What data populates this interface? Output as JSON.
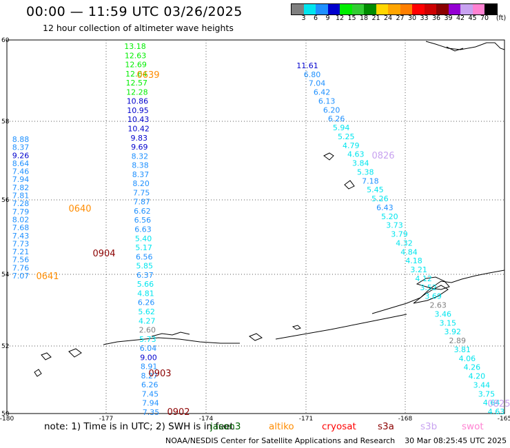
{
  "header": {
    "title": "00:00 — 11:59 UTC 03/26/2025",
    "subtitle": "12 hour collection of altimeter wave heights"
  },
  "legend": {
    "unit": "(ft)",
    "colors": [
      "#7f7f7f",
      "#00e5ee",
      "#1e90ff",
      "#0000cd",
      "#00ee00",
      "#32cd32",
      "#008b00",
      "#ffd700",
      "#ffa500",
      "#ff7f00",
      "#ff0000",
      "#cd0000",
      "#8b0000",
      "#9400d3",
      "#c8a2f0",
      "#ff82d2",
      "#000000"
    ],
    "labels": [
      "3",
      "6",
      "9",
      "12",
      "15",
      "18",
      "21",
      "24",
      "27",
      "30",
      "33",
      "36",
      "39",
      "42",
      "45",
      "70"
    ]
  },
  "axes": {
    "lat_labels": [
      "60",
      "58",
      "56",
      "54",
      "52",
      "50"
    ],
    "lon_labels": [
      "-180",
      "-177",
      "-174",
      "-171",
      "-168",
      "-165"
    ]
  },
  "passes": [
    {
      "id": "0639",
      "color": "#ff8c00"
    },
    {
      "id": "0640",
      "color": "#ff8c00"
    },
    {
      "id": "0641",
      "color": "#ff8c00"
    },
    {
      "id": "0904",
      "color": "#8b0000"
    },
    {
      "id": "0903",
      "color": "#8b0000"
    },
    {
      "id": "0902",
      "color": "#8b0000"
    },
    {
      "id": "0826",
      "color": "#c8a2f0"
    },
    {
      "id": "0825",
      "color": "#c8a2f0"
    }
  ],
  "tracks": {
    "track_a": [
      "13.18",
      "12.63",
      "12.69",
      "12.64",
      "12.57",
      "12.28",
      "10.86",
      "10.95",
      "10.43",
      "10.42",
      "9.83",
      "9.69",
      "8.32",
      "8.38",
      "8.37",
      "8.20",
      "7.75",
      "7.87",
      "6.62",
      "6.56",
      "6.63",
      "5.40",
      "5.17",
      "6.56",
      "5.85",
      "6.37",
      "5.66",
      "4.81",
      "6.26",
      "5.62",
      "4.27",
      "2.60",
      "5.73",
      "6.04",
      "9.00",
      "8.91",
      "8.27",
      "6.26",
      "7.45",
      "7.94",
      "7.35"
    ],
    "track_b": [
      "8.88",
      "8.37",
      "9.26",
      "8.64",
      "7.46",
      "7.94",
      "7.82",
      "7.81",
      "7.28",
      "7.79",
      "8.02",
      "7.68",
      "7.43",
      "7.73",
      "7.21",
      "7.56",
      "7.76",
      "7.07"
    ],
    "track_c": [
      "11.61",
      "6.80",
      "7.04",
      "6.42",
      "6.13",
      "6.20",
      "6.26",
      "5.94",
      "5.25",
      "4.79",
      "4.63",
      "3.84",
      "5.38",
      "7.18",
      "5.45",
      "5.26",
      "6.43",
      "5.20",
      "3.73",
      "3.79",
      "4.32",
      "4.84",
      "4.18",
      "3.21",
      "4.12",
      "3.52",
      "3.69",
      "2.63",
      "3.46",
      "3.15",
      "3.92",
      "2.89",
      "3.81",
      "4.06",
      "4.26",
      "4.20",
      "3.44",
      "3.75",
      "4.64",
      "4.63"
    ]
  },
  "footer": {
    "note": "note: 1) Time is in UTC; 2) SWH is in feet",
    "satellites": [
      {
        "name": "jason3",
        "color": "#006400"
      },
      {
        "name": "altiko",
        "color": "#ff8c00"
      },
      {
        "name": "cryosat",
        "color": "#ff0000"
      },
      {
        "name": "s3a",
        "color": "#8b0000"
      },
      {
        "name": "s3b",
        "color": "#c8a2f0"
      },
      {
        "name": "swot",
        "color": "#ff82d2"
      }
    ],
    "credit": "NOAA/NESDIS Center for Satellite Applications and Research    30 Mar 08:25:45 UTC 2025"
  }
}
